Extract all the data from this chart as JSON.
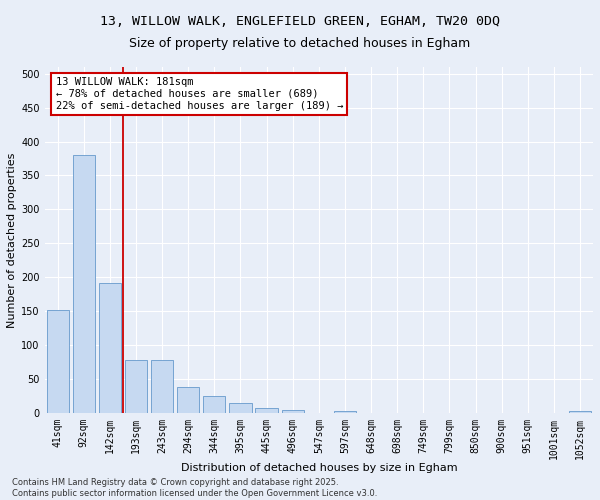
{
  "title_line1": "13, WILLOW WALK, ENGLEFIELD GREEN, EGHAM, TW20 0DQ",
  "title_line2": "Size of property relative to detached houses in Egham",
  "xlabel": "Distribution of detached houses by size in Egham",
  "ylabel": "Number of detached properties",
  "footnote_line1": "Contains HM Land Registry data © Crown copyright and database right 2025.",
  "footnote_line2": "Contains public sector information licensed under the Open Government Licence v3.0.",
  "bar_labels": [
    "41sqm",
    "92sqm",
    "142sqm",
    "193sqm",
    "243sqm",
    "294sqm",
    "344sqm",
    "395sqm",
    "445sqm",
    "496sqm",
    "547sqm",
    "597sqm",
    "648sqm",
    "698sqm",
    "749sqm",
    "799sqm",
    "850sqm",
    "900sqm",
    "951sqm",
    "1001sqm",
    "1052sqm"
  ],
  "bar_values": [
    152,
    380,
    191,
    78,
    78,
    38,
    25,
    15,
    7,
    4,
    0,
    3,
    0,
    0,
    0,
    0,
    0,
    0,
    0,
    0,
    3
  ],
  "bar_color": "#c6d9f1",
  "bar_edge_color": "#6699cc",
  "annotation_text": "13 WILLOW WALK: 181sqm\n← 78% of detached houses are smaller (689)\n22% of semi-detached houses are larger (189) →",
  "vline_x": 2.5,
  "vline_color": "#cc0000",
  "annotation_box_color": "#cc0000",
  "ylim": [
    0,
    510
  ],
  "yticks": [
    0,
    50,
    100,
    150,
    200,
    250,
    300,
    350,
    400,
    450,
    500
  ],
  "bg_color": "#e8eef8",
  "plot_bg_color": "#e8eef8",
  "grid_color": "#ffffff",
  "title_fontsize": 9.5,
  "subtitle_fontsize": 9,
  "axis_label_fontsize": 8,
  "tick_fontsize": 7,
  "annotation_fontsize": 7.5,
  "footnote_fontsize": 6
}
